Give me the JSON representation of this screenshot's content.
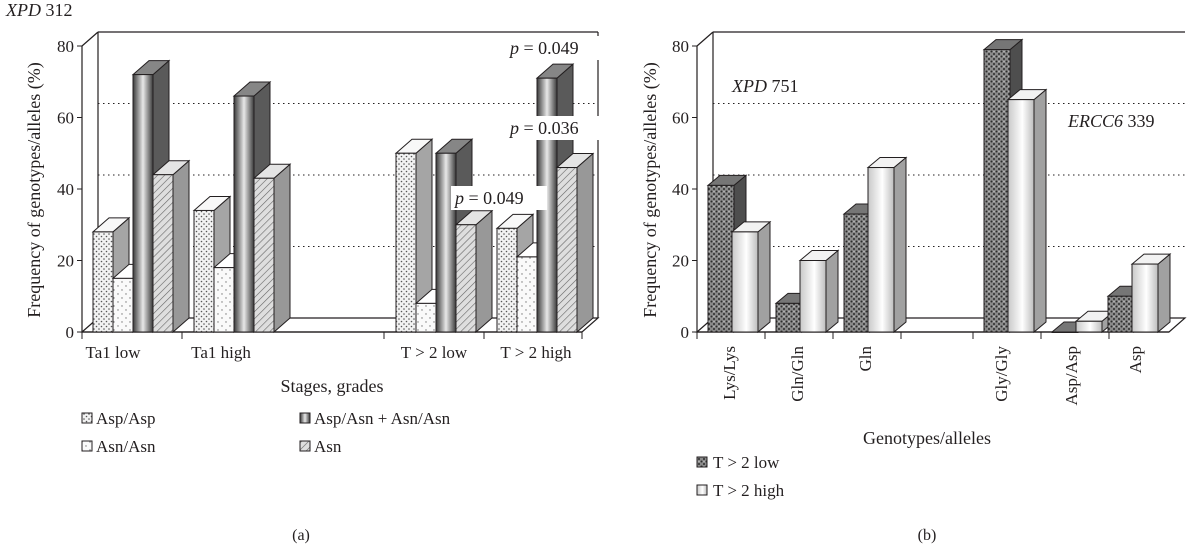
{
  "figure_title": {
    "italic": "XPD",
    "rest": " 312"
  },
  "panel_labels": [
    "(a)",
    "(b)"
  ],
  "chart_data": [
    {
      "type": "bar",
      "panel": "(a)",
      "xlabel": "Stages, grades",
      "ylabel": "Frequency of genotypes/alleles (%)",
      "ylim": [
        0,
        80
      ],
      "yticks": [
        "0",
        "20",
        "40",
        "60",
        "80"
      ],
      "grid": "dotted, y = 20, 40, 60",
      "categories": [
        "Ta1 low",
        "Ta1 high",
        "T > 2 low",
        "T > 2 high"
      ],
      "series": [
        {
          "name": "Asp/Asp",
          "color": "#ececec",
          "pattern": "dots",
          "values": [
            28,
            34,
            50,
            29
          ]
        },
        {
          "name": "Asn/Asn",
          "color": "#f7f7f7",
          "pattern": "sparse-dots",
          "values": [
            15,
            18,
            8,
            21
          ]
        },
        {
          "name": "Asp/Asn + Asn/Asn",
          "color": "#808080",
          "pattern": "gradient",
          "values": [
            72,
            66,
            50,
            71
          ]
        },
        {
          "name": "Asn",
          "color": "#d9d9d9",
          "pattern": "hatch",
          "values": [
            44,
            43,
            30,
            46
          ]
        }
      ],
      "annotations": [
        {
          "pre": "p",
          "text": " = 0.049",
          "series": "Asp/Asn + Asn/Asn",
          "category": "T > 2 high"
        },
        {
          "pre": "p",
          "text": " = 0.036",
          "series": "Asn",
          "category": "T > 2 high"
        },
        {
          "pre": "p",
          "text": " = 0.049",
          "series": "Asn",
          "category": "T > 2 low"
        }
      ],
      "legend_position": "bottom"
    },
    {
      "type": "bar",
      "panel": "(b)",
      "xlabel": "Genotypes/alleles",
      "ylabel": "Frequency of genotypes/alleles (%)",
      "ylim": [
        0,
        80
      ],
      "yticks": [
        "0",
        "20",
        "40",
        "60",
        "80"
      ],
      "grid": "dotted, y = 20, 40, 60",
      "categories": [
        "Lys/Lys",
        "Gln/Gln",
        "Gln",
        "Gly/Gly",
        "Asp/Asp",
        "Asp"
      ],
      "series": [
        {
          "name": "T > 2 low",
          "color": "#707070",
          "pattern": "crosshatch",
          "values": [
            41,
            8,
            33,
            79,
            0,
            10
          ]
        },
        {
          "name": "T > 2 high",
          "color": "#ffffff",
          "pattern": "gradient",
          "values": [
            28,
            20,
            46,
            65,
            3,
            19
          ]
        }
      ],
      "group_labels": [
        {
          "italic": "XPD",
          "rest": " 751"
        },
        {
          "italic": "ERCC6",
          "rest": " 339"
        }
      ],
      "legend_position": "bottom-left"
    }
  ]
}
